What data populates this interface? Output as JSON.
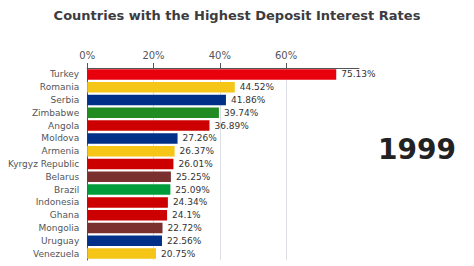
{
  "chart_data": {
    "type": "bar",
    "orientation": "horizontal",
    "title": "Countries with the Highest Deposit Interest Rates",
    "categories": [
      "Turkey",
      "Romania",
      "Serbia",
      "Zimbabwe",
      "Angola",
      "Moldova",
      "Armenia",
      "Kyrgyz Republic",
      "Belarus",
      "Brazil",
      "Indonesia",
      "Ghana",
      "Mongolia",
      "Uruguay",
      "Venezuela"
    ],
    "values": [
      75.13,
      44.52,
      41.86,
      39.74,
      36.89,
      27.26,
      26.37,
      26.01,
      25.25,
      25.09,
      24.34,
      24.1,
      22.72,
      22.56,
      20.75
    ],
    "value_labels": [
      "75.13%",
      "44.52%",
      "41.86%",
      "39.74%",
      "36.89%",
      "27.26%",
      "26.37%",
      "26.01%",
      "25.25%",
      "25.09%",
      "24.34%",
      "24.1%",
      "22.72%",
      "22.56%",
      "20.75%"
    ],
    "colors": [
      "#e8000d",
      "#f5c518",
      "#003087",
      "#228B22",
      "#cc0000",
      "#003087",
      "#f5c518",
      "#cc0000",
      "#7B3030",
      "#009c3b",
      "#cc0000",
      "#cc0000",
      "#7B3030",
      "#003087",
      "#f5c518"
    ],
    "data_labels": true,
    "xlim": [
      0,
      82
    ],
    "xticks": [
      {
        "value": 0,
        "label": "0%"
      },
      {
        "value": 20,
        "label": "20%"
      },
      {
        "value": 40,
        "label": "40%"
      },
      {
        "value": 60,
        "label": "60%"
      }
    ],
    "grid": true,
    "annotations": [
      "1999"
    ]
  }
}
